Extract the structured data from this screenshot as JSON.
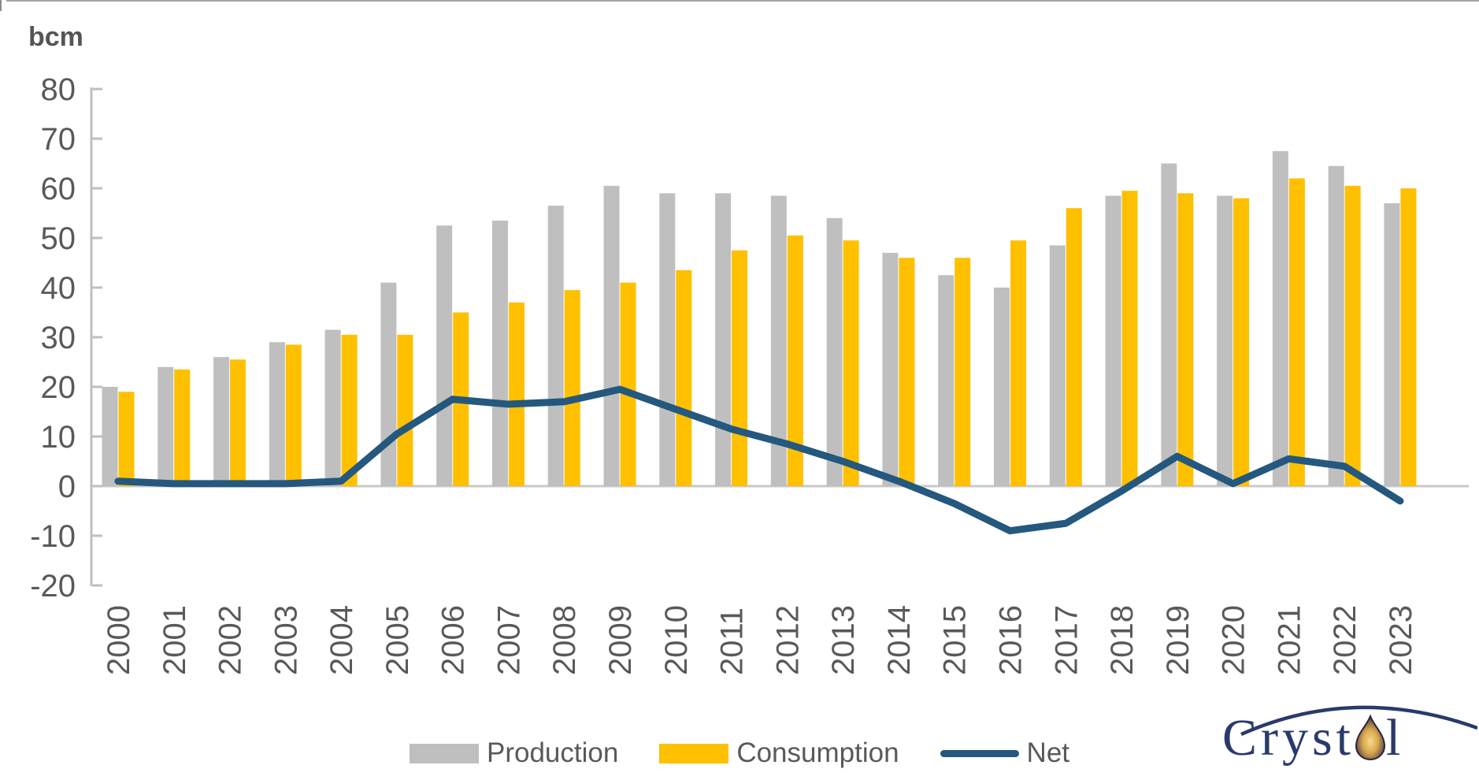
{
  "chart_data": {
    "type": "bar",
    "title": "",
    "xlabel": "",
    "ylabel": "bcm",
    "ylim": [
      -20,
      80
    ],
    "yticks": [
      80,
      70,
      60,
      50,
      40,
      30,
      20,
      10,
      0,
      -10,
      -20
    ],
    "grid": "zero-line-only",
    "legend_position": "bottom",
    "categories": [
      "2000",
      "2001",
      "2002",
      "2003",
      "2004",
      "2005",
      "2006",
      "2007",
      "2008",
      "2009",
      "2010",
      "2011",
      "2012",
      "2013",
      "2014",
      "2015",
      "2016",
      "2017",
      "2018",
      "2019",
      "2020",
      "2021",
      "2022",
      "2023"
    ],
    "series": [
      {
        "name": "Production",
        "type": "bar",
        "color": "#BFBFBF",
        "values": [
          20,
          24,
          26,
          29,
          31.5,
          41,
          52.5,
          53.5,
          56.5,
          60.5,
          59,
          59,
          58.5,
          54,
          47,
          42.5,
          40,
          48.5,
          58.5,
          65,
          58.5,
          67.5,
          64.5,
          57
        ]
      },
      {
        "name": "Consumption",
        "type": "bar",
        "color": "#FFC000",
        "values": [
          19,
          23.5,
          25.5,
          28.5,
          30.5,
          30.5,
          35,
          37,
          39.5,
          41,
          43.5,
          47.5,
          50.5,
          49.5,
          46,
          46,
          49.5,
          56,
          59.5,
          59,
          58,
          62,
          60.5,
          60
        ]
      },
      {
        "name": "Net",
        "type": "line",
        "color": "#24587E",
        "values": [
          1,
          0.5,
          0.5,
          0.5,
          1,
          10.5,
          17.5,
          16.5,
          17,
          19.5,
          15.5,
          11.5,
          8.5,
          5,
          1,
          -3.5,
          -9,
          -7.5,
          -1,
          6,
          0.5,
          5.5,
          4,
          -3
        ]
      }
    ],
    "axis_color": "#BFBFBF",
    "tick_label_color": "#595959"
  },
  "logo": {
    "text_before_drop": "Cryst",
    "text_after_drop": "l"
  }
}
